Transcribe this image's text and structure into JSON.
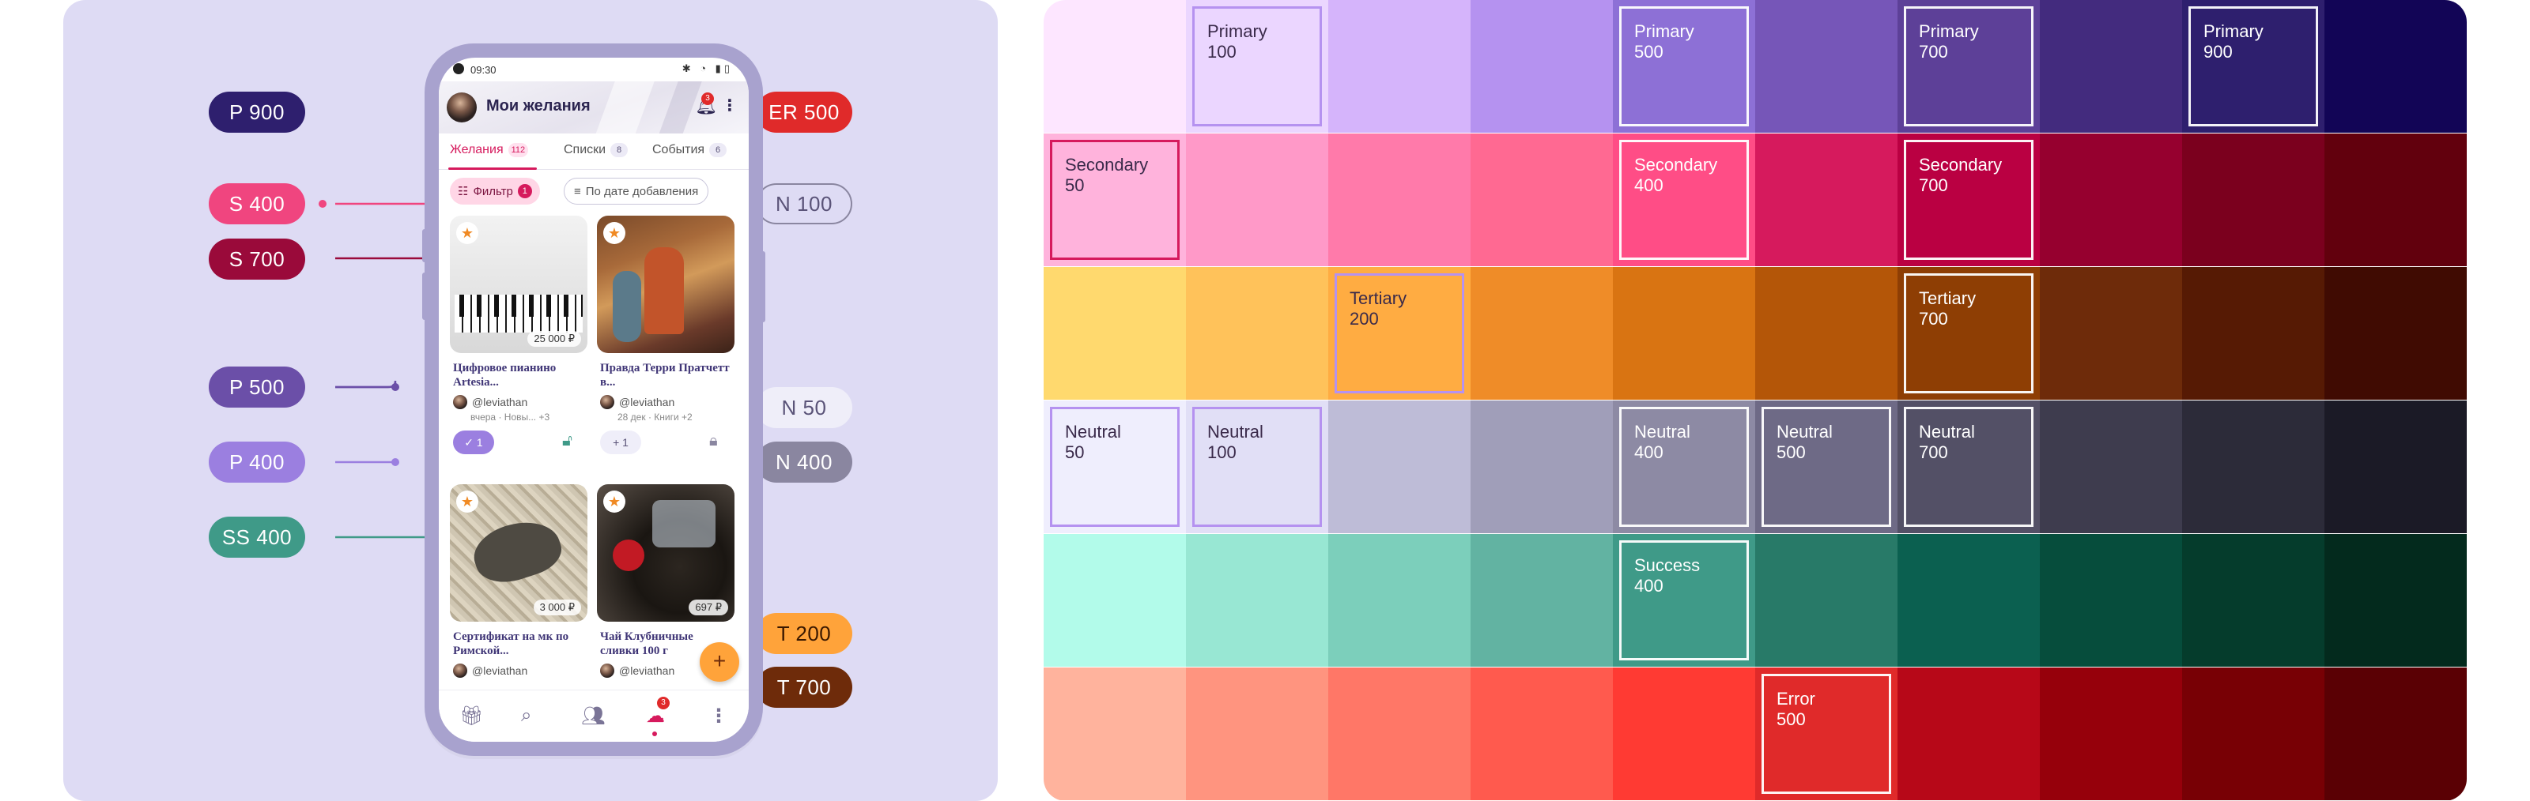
{
  "phone": {
    "status_time": "09:30",
    "title": "Мои желания",
    "notif_count": "3",
    "tabs": [
      {
        "label": "Желания",
        "count": "112"
      },
      {
        "label": "Списки",
        "count": "8"
      },
      {
        "label": "События",
        "count": "6"
      }
    ],
    "filter_label": "Фильтр",
    "filter_count": "1",
    "sort_label": "По дате добавления",
    "cards": [
      {
        "title": "Цифровое пианино Artesia...",
        "price": "25 000 ₽",
        "author": "@leviathan",
        "meta": "вчера · Новы... +3",
        "action": "✓ 1"
      },
      {
        "title": "Правда Терри Пратчетт в...",
        "price": "",
        "author": "@leviathan",
        "meta": "28 дек · Книги +2",
        "action": "+ 1"
      },
      {
        "title": "Сертификат на мк по Римской...",
        "price": "3 000 ₽",
        "author": "@leviathan",
        "meta": "",
        "action": ""
      },
      {
        "title": "Чай Клубничные сливки 100 г",
        "price": "697 ₽",
        "author": "@leviathan",
        "meta": "",
        "action": ""
      }
    ],
    "nav_badge": "3",
    "fab": "+"
  },
  "callouts": [
    {
      "label": "P 900",
      "bg": "#2e1f6e",
      "fg": "#ffffff"
    },
    {
      "label": "S 400",
      "bg": "#f0457f",
      "fg": "#ffffff"
    },
    {
      "label": "S 700",
      "bg": "#9a0a3a",
      "fg": "#ffffff"
    },
    {
      "label": "P 500",
      "bg": "#6b4fa8",
      "fg": "#ffffff"
    },
    {
      "label": "P 400",
      "bg": "#9b7fe0",
      "fg": "#ffffff"
    },
    {
      "label": "SS 400",
      "bg": "#3f9a88",
      "fg": "#ffffff"
    },
    {
      "label": "ER 500",
      "bg": "#e02a2a",
      "fg": "#ffffff"
    },
    {
      "label": "N 100",
      "bg": "#dedbf4",
      "fg": "#5a5378"
    },
    {
      "label": "N 50",
      "bg": "#efeef9",
      "fg": "#5a5378"
    },
    {
      "label": "N 400",
      "bg": "#8a86a0",
      "fg": "#ffffff"
    },
    {
      "label": "T 200",
      "bg": "#ffa33a",
      "fg": "#3a1800"
    },
    {
      "label": "T 700",
      "bg": "#6e2b0a",
      "fg": "#ffffff"
    }
  ],
  "palette": {
    "rows": [
      {
        "colors": [
          "#fde6ff",
          "#ebd6ff",
          "#d5b4fb",
          "#b592f0",
          "#8d70d6",
          "#7656b8",
          "#5d4098",
          "#432b7e",
          "#2e1f6e",
          "#120556"
        ],
        "labels": {
          "1": "Primary 100",
          "4": "Primary 500",
          "6": "Primary 700",
          "8": "Primary 900"
        }
      },
      {
        "colors": [
          "#ffb3dc",
          "#ff99c8",
          "#ff7aaa",
          "#ff6992",
          "#ff4d86",
          "#d61a5d",
          "#ba0042",
          "#96002f",
          "#7b001e",
          "#62000d"
        ],
        "labels": {
          "0": "Secondary 50",
          "4": "Secondary 400",
          "6": "Secondary 700"
        }
      },
      {
        "colors": [
          "#ffd96e",
          "#ffc25a",
          "#ffac42",
          "#ef8c28",
          "#d97412",
          "#b45608",
          "#8e3e04",
          "#6e2b0a",
          "#561a04",
          "#400b02"
        ],
        "labels": {
          "2": "Tertiary 200",
          "6": "Tertiary 700"
        }
      },
      {
        "colors": [
          "#efeefd",
          "#e1dff6",
          "#bebcd7",
          "#a09eb9",
          "#8d8aa4",
          "#6e6a86",
          "#535066",
          "#3e3c4e",
          "#2c2b39",
          "#1b1a26"
        ],
        "labels": {
          "0": "Neutral 50",
          "1": "Neutral 100",
          "4": "Neutral 400",
          "5": "Neutral 500",
          "6": "Neutral 700"
        }
      },
      {
        "colors": [
          "#b2fbea",
          "#98e7d3",
          "#7ccfbb",
          "#62b3a2",
          "#3f9a88",
          "#287a68",
          "#0b6050",
          "#064d3c",
          "#053c2c",
          "#032a1d"
        ],
        "labels": {
          "4": "Success 400"
        }
      },
      {
        "colors": [
          "#ffb39d",
          "#ff947f",
          "#ff7767",
          "#ff5a4e",
          "#ff3a33",
          "#e02a2a",
          "#b70818",
          "#96000b",
          "#780005",
          "#5a0004"
        ],
        "labels": {
          "5": "Error 500"
        }
      }
    ]
  }
}
